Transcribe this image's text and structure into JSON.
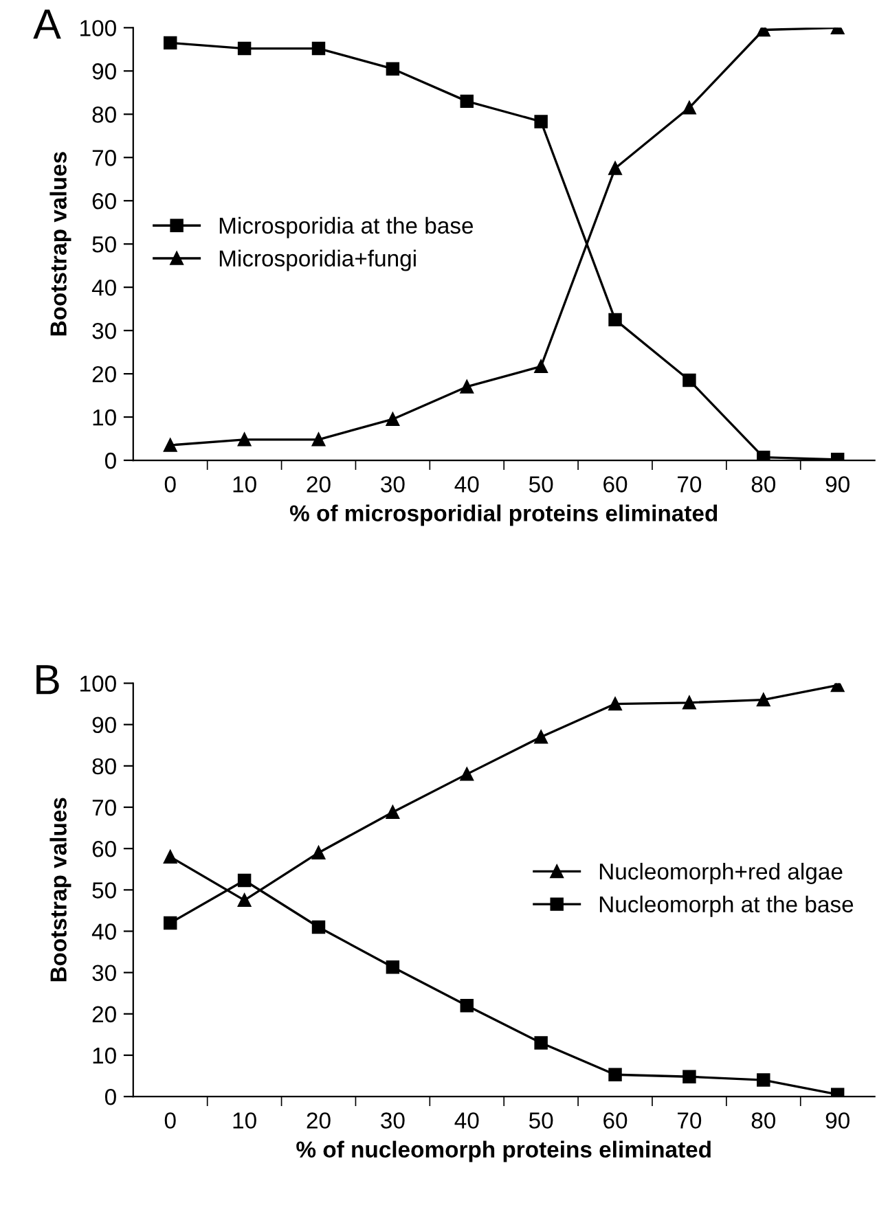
{
  "chart_data": [
    {
      "type": "line",
      "annotations": [
        "A"
      ],
      "xlabel": "% of microsporidial proteins eliminated",
      "ylabel": "Bootstrap values",
      "categories": [
        "0",
        "10",
        "20",
        "30",
        "40",
        "50",
        "60",
        "70",
        "80",
        "90"
      ],
      "ylim": [
        0,
        100
      ],
      "yticks": [
        0,
        10,
        20,
        30,
        40,
        50,
        60,
        70,
        80,
        90,
        100
      ],
      "grid": false,
      "legend": "left",
      "series": [
        {
          "name": "Microsporidia at the base",
          "color": "#000000",
          "marker": "square",
          "values": [
            96.5,
            95.2,
            95.2,
            90.5,
            83,
            78.3,
            32.5,
            18.5,
            0.7,
            0.2
          ]
        },
        {
          "name": "Microsporidia+fungi",
          "color": "#000000",
          "marker": "triangle",
          "values": [
            3.5,
            4.8,
            4.8,
            9.5,
            17,
            21.7,
            67.5,
            81.5,
            99.5,
            100
          ]
        }
      ]
    },
    {
      "type": "line",
      "annotations": [
        "B"
      ],
      "xlabel": "% of nucleomorph proteins eliminated",
      "ylabel": "Bootstrap values",
      "categories": [
        "0",
        "10",
        "20",
        "30",
        "40",
        "50",
        "60",
        "70",
        "80",
        "90"
      ],
      "ylim": [
        0,
        100
      ],
      "yticks": [
        0,
        10,
        20,
        30,
        40,
        50,
        60,
        70,
        80,
        90,
        100
      ],
      "grid": false,
      "legend": "right",
      "series": [
        {
          "name": "Nucleomorph+red algae",
          "color": "#000000",
          "marker": "triangle",
          "values": [
            58,
            47.5,
            59,
            68.8,
            78,
            87,
            95,
            95.3,
            96,
            99.5
          ]
        },
        {
          "name": "Nucleomorph at the base",
          "color": "#000000",
          "marker": "square",
          "values": [
            42,
            52.3,
            41,
            31.3,
            22,
            13,
            5.3,
            4.8,
            4,
            0.5
          ]
        }
      ]
    }
  ]
}
